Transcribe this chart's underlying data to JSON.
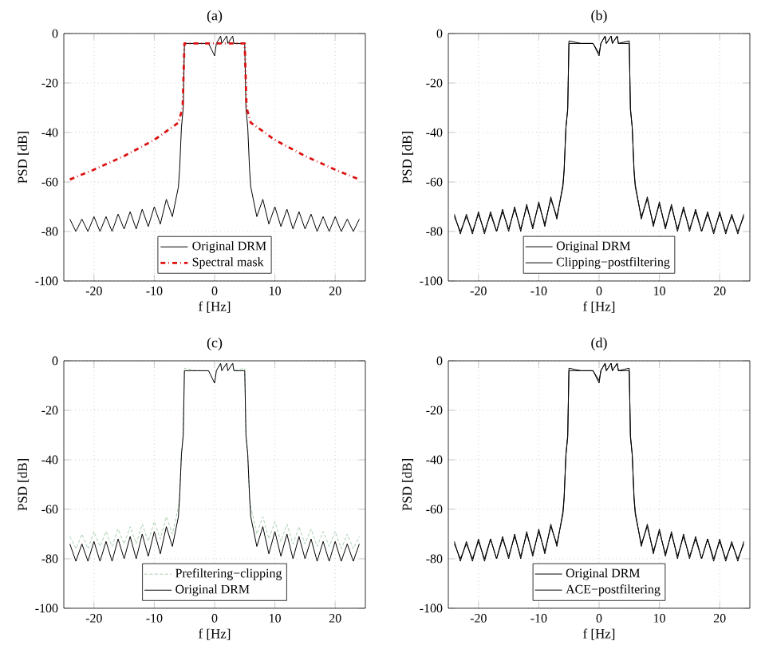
{
  "chart_data": [
    {
      "type": "line",
      "title": "(a)",
      "xlabel": "f [Hz]",
      "ylabel": "PSD [dB]",
      "xlim": [
        -25,
        25
      ],
      "ylim": [
        -100,
        0
      ],
      "xticks": [
        -20,
        -10,
        0,
        10,
        20
      ],
      "yticks": [
        -100,
        -80,
        -60,
        -40,
        -20,
        0
      ],
      "grid": true,
      "legend": "bottom",
      "marker": "none",
      "x": [
        -24,
        -23,
        -22,
        -21,
        -20,
        -19,
        -18,
        -17,
        -16,
        -15,
        -14,
        -13,
        -12,
        -11,
        -10,
        -9,
        -8,
        -7,
        -6,
        -5.8,
        -5.5,
        -5.2,
        -5,
        -3,
        -1,
        0,
        0.3,
        1,
        1.2,
        2,
        2.2,
        3,
        3.2,
        5,
        5.2,
        5.5,
        5.8,
        6,
        7,
        8,
        9,
        10,
        11,
        12,
        13,
        14,
        15,
        16,
        17,
        18,
        19,
        20,
        21,
        22,
        23,
        24
      ],
      "series": [
        {
          "name": "Original DRM",
          "color": "#000000",
          "line_style": "solid",
          "values": [
            -75,
            -80,
            -75,
            -80,
            -74,
            -80,
            -74,
            -80,
            -73,
            -79,
            -72,
            -79,
            -71,
            -78,
            -70,
            -77,
            -67,
            -74,
            -62,
            -55,
            -38,
            -30,
            -4,
            -4,
            -4,
            -9,
            -4,
            -1,
            -4,
            -1,
            -4,
            -1,
            -4,
            -4,
            -30,
            -38,
            -55,
            -62,
            -74,
            -67,
            -77,
            -70,
            -78,
            -71,
            -79,
            -72,
            -79,
            -73,
            -80,
            -74,
            -80,
            -74,
            -80,
            -75,
            -80,
            -75
          ]
        },
        {
          "name": "Spectral mask",
          "color": "#dd1111",
          "line_style": "dashdot",
          "x": [
            -24,
            -20,
            -15,
            -10,
            -6,
            -5.3,
            -5,
            5,
            5.3,
            6,
            10,
            15,
            20,
            24
          ],
          "values": [
            -59,
            -55,
            -49.5,
            -43,
            -36,
            -30,
            -4,
            -4,
            -30,
            -36,
            -43,
            -49.5,
            -55,
            -59
          ]
        }
      ]
    },
    {
      "type": "line",
      "title": "(b)",
      "xlabel": "f [Hz]",
      "ylabel": "PSD [dB]",
      "xlim": [
        -25,
        25
      ],
      "ylim": [
        -100,
        0
      ],
      "xticks": [
        -20,
        -10,
        0,
        10,
        20
      ],
      "yticks": [
        -100,
        -80,
        -60,
        -40,
        -20,
        0
      ],
      "grid": true,
      "legend": "bottom",
      "marker": "none",
      "x": [
        -24,
        -23,
        -22,
        -21,
        -20,
        -19,
        -18,
        -17,
        -16,
        -15,
        -14,
        -13,
        -12,
        -11,
        -10,
        -9,
        -8,
        -7,
        -6,
        -5.8,
        -5.5,
        -5.2,
        -5,
        -3,
        -1,
        0,
        0.3,
        1,
        1.2,
        2,
        2.2,
        3,
        3.2,
        5,
        5.2,
        5.5,
        5.8,
        6,
        7,
        8,
        9,
        10,
        11,
        12,
        13,
        14,
        15,
        16,
        17,
        18,
        19,
        20,
        21,
        22,
        23,
        24
      ],
      "series": [
        {
          "name": "Original DRM",
          "color": "#000000",
          "line_style": "solid",
          "values": [
            -73,
            -81,
            -73,
            -81,
            -72,
            -81,
            -72,
            -80,
            -71,
            -80,
            -70,
            -80,
            -69,
            -79,
            -68,
            -78,
            -66,
            -75,
            -61,
            -55,
            -38,
            -30,
            -4,
            -4,
            -4,
            -9,
            -4,
            -1,
            -4,
            -1,
            -4,
            -1,
            -4,
            -4,
            -30,
            -38,
            -55,
            -61,
            -75,
            -66,
            -78,
            -68,
            -79,
            -69,
            -80,
            -70,
            -80,
            -71,
            -80,
            -72,
            -81,
            -72,
            -81,
            -73,
            -81,
            -73
          ]
        },
        {
          "name": "Clipping−postfiltering",
          "color": "#000000",
          "line_style": "solid",
          "values": [
            -74,
            -80,
            -74,
            -80,
            -73,
            -80,
            -73,
            -80,
            -72,
            -79,
            -71,
            -79,
            -70,
            -78,
            -69,
            -77,
            -67,
            -74,
            -62,
            -56,
            -38,
            -31,
            -3,
            -4,
            -4,
            -8,
            -4,
            -1,
            -4,
            -1,
            -4,
            -1,
            -4,
            -3,
            -31,
            -38,
            -56,
            -62,
            -74,
            -67,
            -77,
            -69,
            -78,
            -70,
            -79,
            -71,
            -79,
            -72,
            -80,
            -73,
            -80,
            -73,
            -80,
            -74,
            -80,
            -74
          ]
        }
      ]
    },
    {
      "type": "line",
      "title": "(c)",
      "xlabel": "f [Hz]",
      "ylabel": "PSD [dB]",
      "xlim": [
        -25,
        25
      ],
      "ylim": [
        -100,
        0
      ],
      "xticks": [
        -20,
        -10,
        0,
        10,
        20
      ],
      "yticks": [
        -100,
        -80,
        -60,
        -40,
        -20,
        0
      ],
      "grid": true,
      "legend": "bottom",
      "marker": "none",
      "x": [
        -24,
        -23,
        -22,
        -21,
        -20,
        -19,
        -18,
        -17,
        -16,
        -15,
        -14,
        -13,
        -12,
        -11,
        -10,
        -9,
        -8,
        -7,
        -6,
        -5.8,
        -5.5,
        -5.2,
        -5,
        -3,
        -1,
        0,
        0.3,
        1,
        1.2,
        2,
        2.2,
        3,
        3.2,
        5,
        5.2,
        5.5,
        5.8,
        6,
        7,
        8,
        9,
        10,
        11,
        12,
        13,
        14,
        15,
        16,
        17,
        18,
        19,
        20,
        21,
        22,
        23,
        24
      ],
      "series": [
        {
          "name": "Prefiltering−clipping",
          "color": "#a8d0b0",
          "line_style": "dashed",
          "values": [
            -71,
            -76,
            -70,
            -76,
            -69,
            -75,
            -69,
            -75,
            -68,
            -74,
            -67,
            -74,
            -66,
            -73,
            -65,
            -72,
            -63,
            -70,
            -59,
            -56,
            -37,
            -30,
            -3,
            -4,
            -4,
            -9,
            -4,
            -1,
            -4,
            -1,
            -4,
            -1,
            -4,
            -3,
            -30,
            -37,
            -56,
            -59,
            -70,
            -63,
            -72,
            -65,
            -73,
            -66,
            -74,
            -67,
            -74,
            -68,
            -75,
            -69,
            -75,
            -69,
            -76,
            -70,
            -76,
            -71
          ]
        },
        {
          "name": "Original DRM",
          "color": "#000000",
          "line_style": "solid",
          "values": [
            -74,
            -81,
            -74,
            -81,
            -73,
            -81,
            -73,
            -81,
            -72,
            -80,
            -71,
            -80,
            -70,
            -79,
            -69,
            -78,
            -67,
            -75,
            -63,
            -55,
            -38,
            -30,
            -4,
            -4,
            -4,
            -9,
            -4,
            -1,
            -4,
            -1,
            -4,
            -1,
            -4,
            -4,
            -30,
            -38,
            -55,
            -63,
            -75,
            -67,
            -78,
            -69,
            -79,
            -70,
            -80,
            -71,
            -80,
            -72,
            -81,
            -73,
            -81,
            -73,
            -81,
            -74,
            -81,
            -74
          ]
        }
      ]
    },
    {
      "type": "line",
      "title": "(d)",
      "xlabel": "f [Hz]",
      "ylabel": "PSD [dB]",
      "xlim": [
        -25,
        25
      ],
      "ylim": [
        -100,
        0
      ],
      "xticks": [
        -20,
        -10,
        0,
        10,
        20
      ],
      "yticks": [
        -100,
        -80,
        -60,
        -40,
        -20,
        0
      ],
      "grid": true,
      "legend": "bottom",
      "marker": "none",
      "x": [
        -24,
        -23,
        -22,
        -21,
        -20,
        -19,
        -18,
        -17,
        -16,
        -15,
        -14,
        -13,
        -12,
        -11,
        -10,
        -9,
        -8,
        -7,
        -6,
        -5.8,
        -5.5,
        -5.2,
        -5,
        -3,
        -1,
        0,
        0.3,
        1,
        1.2,
        2,
        2.2,
        3,
        3.2,
        5,
        5.2,
        5.5,
        5.8,
        6,
        7,
        8,
        9,
        10,
        11,
        12,
        13,
        14,
        15,
        16,
        17,
        18,
        19,
        20,
        21,
        22,
        23,
        24
      ],
      "series": [
        {
          "name": "Original DRM",
          "color": "#000000",
          "line_style": "solid",
          "values": [
            -73,
            -81,
            -73,
            -81,
            -72,
            -81,
            -72,
            -80,
            -71,
            -80,
            -70,
            -80,
            -69,
            -79,
            -68,
            -78,
            -66,
            -75,
            -61,
            -55,
            -38,
            -30,
            -4,
            -4,
            -4,
            -9,
            -4,
            -1,
            -4,
            -1,
            -4,
            -1,
            -4,
            -4,
            -30,
            -38,
            -55,
            -61,
            -75,
            -66,
            -78,
            -68,
            -79,
            -69,
            -80,
            -70,
            -80,
            -71,
            -80,
            -72,
            -81,
            -72,
            -81,
            -73,
            -81,
            -73
          ]
        },
        {
          "name": "ACE−postfiltering",
          "color": "#000000",
          "line_style": "solid",
          "values": [
            -74,
            -80,
            -74,
            -80,
            -73,
            -80,
            -72,
            -80,
            -72,
            -79,
            -71,
            -79,
            -70,
            -78,
            -69,
            -77,
            -67,
            -74,
            -62,
            -56,
            -38,
            -31,
            -3,
            -4,
            -4,
            -8,
            -4,
            -1,
            -4,
            -1,
            -4,
            -1,
            -4,
            -3,
            -31,
            -38,
            -56,
            -62,
            -74,
            -67,
            -77,
            -69,
            -78,
            -70,
            -79,
            -71,
            -79,
            -72,
            -80,
            -72,
            -80,
            -73,
            -80,
            -74,
            -80,
            -74
          ]
        }
      ]
    }
  ]
}
